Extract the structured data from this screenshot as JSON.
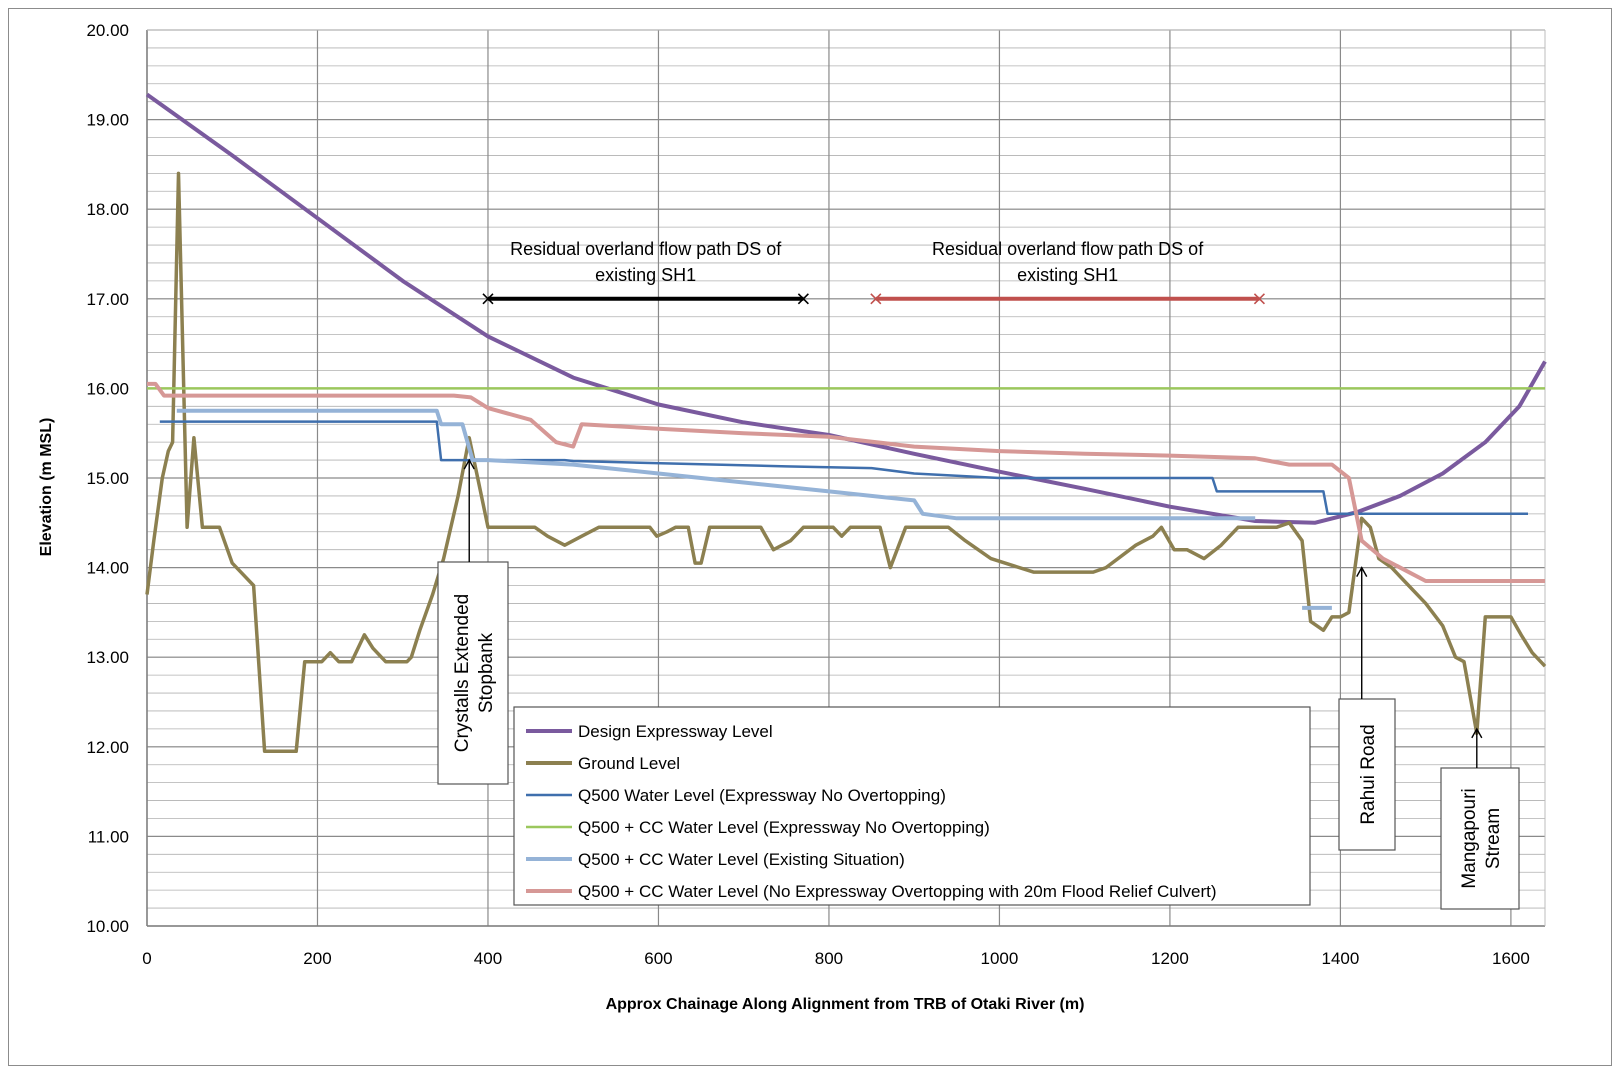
{
  "chart_data": {
    "type": "line",
    "xlabel": "Approx Chainage  Along Alignment from TRB of Otaki River (m)",
    "ylabel": "Elevation (m MSL)",
    "xlim": [
      0,
      1640
    ],
    "ylim": [
      10,
      20
    ],
    "x_ticks": [
      "0",
      "200",
      "400",
      "600",
      "800",
      "1000",
      "1200",
      "1400",
      "1600"
    ],
    "y_ticks": [
      "10.00",
      "11.00",
      "12.00",
      "13.00",
      "14.00",
      "15.00",
      "16.00",
      "17.00",
      "18.00",
      "19.00",
      "20.00"
    ],
    "grid": "on",
    "legend_position": "center-bottom",
    "series": [
      {
        "name": "Design Expressway Level",
        "color": "#7a5a9e",
        "points": [
          [
            0,
            19.28
          ],
          [
            100,
            18.6
          ],
          [
            200,
            17.9
          ],
          [
            300,
            17.2
          ],
          [
            400,
            16.58
          ],
          [
            500,
            16.12
          ],
          [
            600,
            15.82
          ],
          [
            700,
            15.62
          ],
          [
            800,
            15.48
          ],
          [
            900,
            15.27
          ],
          [
            1000,
            15.07
          ],
          [
            1100,
            14.88
          ],
          [
            1200,
            14.68
          ],
          [
            1300,
            14.52
          ],
          [
            1370,
            14.5
          ],
          [
            1420,
            14.62
          ],
          [
            1470,
            14.8
          ],
          [
            1520,
            15.05
          ],
          [
            1570,
            15.4
          ],
          [
            1610,
            15.8
          ],
          [
            1640,
            16.3
          ]
        ]
      },
      {
        "name": "Ground Level",
        "color": "#8c8050",
        "points": [
          [
            0,
            13.7
          ],
          [
            8,
            14.3
          ],
          [
            18,
            15.0
          ],
          [
            25,
            15.3
          ],
          [
            30,
            15.4
          ],
          [
            37,
            18.4
          ],
          [
            47,
            14.45
          ],
          [
            55,
            15.45
          ],
          [
            65,
            14.45
          ],
          [
            85,
            14.45
          ],
          [
            100,
            14.05
          ],
          [
            110,
            13.95
          ],
          [
            125,
            13.8
          ],
          [
            138,
            11.95
          ],
          [
            160,
            11.95
          ],
          [
            175,
            11.95
          ],
          [
            185,
            12.95
          ],
          [
            205,
            12.95
          ],
          [
            215,
            13.05
          ],
          [
            225,
            12.95
          ],
          [
            240,
            12.95
          ],
          [
            255,
            13.25
          ],
          [
            265,
            13.1
          ],
          [
            280,
            12.95
          ],
          [
            305,
            12.95
          ],
          [
            310,
            13.0
          ],
          [
            320,
            13.3
          ],
          [
            335,
            13.7
          ],
          [
            348,
            14.1
          ],
          [
            365,
            14.8
          ],
          [
            378,
            15.45
          ],
          [
            388,
            15.0
          ],
          [
            400,
            14.45
          ],
          [
            420,
            14.45
          ],
          [
            455,
            14.45
          ],
          [
            470,
            14.35
          ],
          [
            490,
            14.25
          ],
          [
            510,
            14.35
          ],
          [
            530,
            14.45
          ],
          [
            570,
            14.45
          ],
          [
            590,
            14.45
          ],
          [
            598,
            14.35
          ],
          [
            610,
            14.4
          ],
          [
            620,
            14.45
          ],
          [
            635,
            14.45
          ],
          [
            643,
            14.05
          ],
          [
            650,
            14.05
          ],
          [
            660,
            14.45
          ],
          [
            700,
            14.45
          ],
          [
            720,
            14.45
          ],
          [
            735,
            14.2
          ],
          [
            755,
            14.3
          ],
          [
            770,
            14.45
          ],
          [
            805,
            14.45
          ],
          [
            815,
            14.35
          ],
          [
            825,
            14.45
          ],
          [
            860,
            14.45
          ],
          [
            872,
            14.0
          ],
          [
            880,
            14.2
          ],
          [
            890,
            14.45
          ],
          [
            940,
            14.45
          ],
          [
            960,
            14.3
          ],
          [
            990,
            14.1
          ],
          [
            1040,
            13.95
          ],
          [
            1110,
            13.95
          ],
          [
            1125,
            14.0
          ],
          [
            1160,
            14.25
          ],
          [
            1180,
            14.35
          ],
          [
            1190,
            14.45
          ],
          [
            1205,
            14.2
          ],
          [
            1220,
            14.2
          ],
          [
            1240,
            14.1
          ],
          [
            1260,
            14.25
          ],
          [
            1280,
            14.45
          ],
          [
            1300,
            14.45
          ],
          [
            1325,
            14.45
          ],
          [
            1340,
            14.5
          ],
          [
            1355,
            14.3
          ],
          [
            1365,
            13.4
          ],
          [
            1380,
            13.3
          ],
          [
            1390,
            13.45
          ],
          [
            1400,
            13.45
          ],
          [
            1410,
            13.5
          ],
          [
            1425,
            14.55
          ],
          [
            1435,
            14.45
          ],
          [
            1445,
            14.1
          ],
          [
            1460,
            14.0
          ],
          [
            1480,
            13.8
          ],
          [
            1500,
            13.6
          ],
          [
            1520,
            13.35
          ],
          [
            1535,
            13.0
          ],
          [
            1545,
            12.95
          ],
          [
            1560,
            12.15
          ],
          [
            1570,
            13.45
          ],
          [
            1600,
            13.45
          ],
          [
            1612,
            13.25
          ],
          [
            1625,
            13.05
          ],
          [
            1640,
            12.9
          ]
        ]
      },
      {
        "name": "Q500 Water Level (Expressway No Overtopping)",
        "color": "#3f6fad",
        "points": [
          [
            15,
            15.63
          ],
          [
            340,
            15.63
          ],
          [
            345,
            15.2
          ],
          [
            490,
            15.2
          ],
          [
            500,
            15.19
          ],
          [
            750,
            15.13
          ],
          [
            850,
            15.11
          ],
          [
            900,
            15.05
          ],
          [
            1000,
            15.0
          ],
          [
            1250,
            15.0
          ],
          [
            1255,
            14.85
          ],
          [
            1380,
            14.85
          ],
          [
            1385,
            14.6
          ],
          [
            1620,
            14.6
          ]
        ]
      },
      {
        "name": "Q500 + CC Water Level (Expressway No Overtopping)",
        "color": "#9bc75d",
        "points": [
          [
            0,
            16.0
          ],
          [
            1640,
            16.0
          ]
        ]
      },
      {
        "name": "Q500 + CC Water Level (Existing  Situation)",
        "color": "#95b3d7",
        "points": [
          [
            35,
            15.75
          ],
          [
            340,
            15.75
          ],
          [
            345,
            15.6
          ],
          [
            370,
            15.6
          ],
          [
            382,
            15.2
          ],
          [
            400,
            15.2
          ],
          [
            500,
            15.15
          ],
          [
            600,
            15.05
          ],
          [
            700,
            14.95
          ],
          [
            800,
            14.85
          ],
          [
            900,
            14.75
          ],
          [
            910,
            14.6
          ],
          [
            950,
            14.55
          ],
          [
            1050,
            14.55
          ],
          [
            1150,
            14.55
          ],
          [
            1300,
            14.55
          ],
          [
            null,
            null
          ],
          [
            1355,
            13.55
          ],
          [
            1390,
            13.55
          ]
        ]
      },
      {
        "name": "Q500 + CC Water Level (No  Expressway Overtopping with 20m Flood Relief Culvert)",
        "color": "#d69896",
        "points": [
          [
            0,
            16.05
          ],
          [
            10,
            16.05
          ],
          [
            20,
            15.92
          ],
          [
            360,
            15.92
          ],
          [
            380,
            15.9
          ],
          [
            400,
            15.78
          ],
          [
            450,
            15.65
          ],
          [
            480,
            15.4
          ],
          [
            500,
            15.35
          ],
          [
            510,
            15.6
          ],
          [
            600,
            15.55
          ],
          [
            700,
            15.5
          ],
          [
            800,
            15.46
          ],
          [
            900,
            15.35
          ],
          [
            1000,
            15.3
          ],
          [
            1100,
            15.27
          ],
          [
            1200,
            15.25
          ],
          [
            1300,
            15.22
          ],
          [
            1340,
            15.15
          ],
          [
            1390,
            15.15
          ],
          [
            1410,
            15.0
          ],
          [
            1425,
            14.3
          ],
          [
            1450,
            14.1
          ],
          [
            1500,
            13.85
          ],
          [
            1640,
            13.85
          ]
        ]
      }
    ],
    "annotations": [
      {
        "text_lines": [
          "Residual overland flow path DS of",
          "existing SH1"
        ],
        "x_start": 400,
        "x_end": 770,
        "y": 17.0,
        "color": "#000000"
      },
      {
        "text_lines": [
          "Residual overland flow path DS of",
          "existing SH1"
        ],
        "x_start": 855,
        "x_end": 1305,
        "y": 17.0,
        "color": "#c0504d"
      }
    ],
    "callouts": [
      {
        "text_lines": [
          "Crystalls Extended",
          "Stopbank"
        ],
        "arrow_x": 378,
        "arrow_y": 15.2
      },
      {
        "text_lines": [
          "Rahui Road"
        ],
        "arrow_x": 1425,
        "arrow_y": 14.0
      },
      {
        "text_lines": [
          "Mangapouri",
          "Stream"
        ],
        "arrow_x": 1560,
        "arrow_y": 12.2
      }
    ]
  }
}
